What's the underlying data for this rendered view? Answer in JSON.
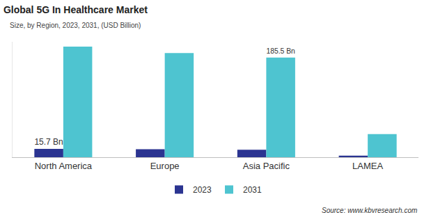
{
  "chart_data": {
    "type": "bar",
    "title": "Global 5G In Healthcare Market",
    "subtitle": "Size, by Region, 2023, 2031, (USD Billion)",
    "annotations": [
      "Source: www.kbvresearch.com"
    ],
    "categories": [
      "North America",
      "Europe",
      "Asia Pacific",
      "LAMEA"
    ],
    "series": [
      {
        "name": "2023",
        "color": "#2b3491",
        "values": [
          15.7,
          15.0,
          13.8,
          2.8
        ],
        "value_labels": [
          "15.7 Bn",
          null,
          null,
          null
        ]
      },
      {
        "name": "2031",
        "color": "#4ec4d0",
        "values": [
          206,
          194,
          185.5,
          43
        ],
        "value_labels": [
          null,
          null,
          "185.5 Bn",
          null
        ]
      }
    ],
    "ylim": [
      0,
      215
    ],
    "tick_labels": "x",
    "grid": false,
    "data_labels": true,
    "legend": "bottom"
  }
}
